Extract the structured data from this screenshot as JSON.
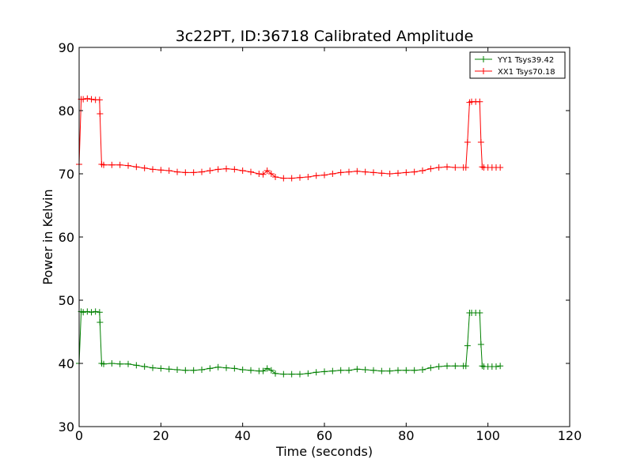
{
  "chart_data": {
    "type": "line",
    "title": "3c22PT, ID:36718 Calibrated Amplitude",
    "xlabel": "Time (seconds)",
    "ylabel": "Power in Kelvin",
    "xlim": [
      0,
      120
    ],
    "ylim": [
      30,
      90
    ],
    "xticks": [
      0,
      20,
      40,
      60,
      80,
      100,
      120
    ],
    "yticks": [
      30,
      40,
      50,
      60,
      70,
      80,
      90
    ],
    "grid": false,
    "legend_position": "top-right",
    "marker": "+",
    "series": [
      {
        "name": "YY1 Tsys39.42",
        "color": "#008000",
        "x": [
          0,
          0.5,
          1,
          2,
          3,
          4,
          5,
          5.1,
          5.5,
          6,
          8,
          10,
          12,
          14,
          16,
          18,
          20,
          22,
          24,
          26,
          28,
          30,
          32,
          34,
          36,
          38,
          40,
          42,
          44,
          45,
          46,
          47,
          48,
          50,
          52,
          54,
          56,
          58,
          60,
          62,
          64,
          66,
          68,
          70,
          72,
          74,
          76,
          78,
          80,
          82,
          84,
          86,
          88,
          90,
          92,
          94,
          94.6,
          95,
          95.5,
          96,
          97,
          98,
          98.3,
          98.6,
          99,
          100,
          101,
          102,
          103
        ],
        "y": [
          40,
          48.2,
          48.1,
          48.2,
          48.1,
          48.2,
          48.1,
          46.5,
          40,
          39.9,
          40,
          39.9,
          39.9,
          39.7,
          39.5,
          39.3,
          39.2,
          39.1,
          39.0,
          38.9,
          38.9,
          39.0,
          39.2,
          39.4,
          39.3,
          39.2,
          39.0,
          38.9,
          38.8,
          38.8,
          39.2,
          38.9,
          38.4,
          38.3,
          38.3,
          38.3,
          38.4,
          38.6,
          38.7,
          38.8,
          38.9,
          38.9,
          39.1,
          39.0,
          38.9,
          38.8,
          38.8,
          38.9,
          38.9,
          38.9,
          39.0,
          39.3,
          39.5,
          39.6,
          39.6,
          39.6,
          39.6,
          42.8,
          48.0,
          48.0,
          48.0,
          48.0,
          43.0,
          39.6,
          39.5,
          39.5,
          39.5,
          39.5,
          39.6
        ]
      },
      {
        "name": "XX1 Tsys70.18",
        "color": "#ff0000",
        "x": [
          0,
          0.5,
          1,
          2,
          3,
          4,
          5,
          5.1,
          5.5,
          6,
          8,
          10,
          12,
          14,
          16,
          18,
          20,
          22,
          24,
          26,
          28,
          30,
          32,
          34,
          36,
          38,
          40,
          42,
          44,
          45,
          46,
          47,
          48,
          50,
          52,
          54,
          56,
          58,
          60,
          62,
          64,
          66,
          68,
          70,
          72,
          74,
          76,
          78,
          80,
          82,
          84,
          86,
          88,
          90,
          92,
          94,
          94.6,
          95,
          95.5,
          96,
          97,
          98,
          98.3,
          98.6,
          99,
          100,
          101,
          102,
          103
        ],
        "y": [
          71.5,
          81.8,
          81.8,
          81.9,
          81.8,
          81.7,
          81.7,
          79.5,
          71.5,
          71.4,
          71.4,
          71.4,
          71.3,
          71.1,
          70.9,
          70.7,
          70.6,
          70.5,
          70.3,
          70.2,
          70.2,
          70.3,
          70.5,
          70.7,
          70.8,
          70.7,
          70.5,
          70.3,
          70.0,
          69.9,
          70.5,
          70.0,
          69.5,
          69.3,
          69.3,
          69.4,
          69.5,
          69.7,
          69.8,
          70.0,
          70.2,
          70.3,
          70.4,
          70.3,
          70.2,
          70.1,
          70.0,
          70.1,
          70.2,
          70.3,
          70.5,
          70.8,
          71.0,
          71.1,
          71.0,
          71.0,
          71.0,
          75.0,
          81.3,
          81.4,
          81.4,
          81.4,
          75.0,
          71.1,
          71.0,
          71.0,
          71.0,
          71.0,
          71.0
        ]
      }
    ]
  }
}
